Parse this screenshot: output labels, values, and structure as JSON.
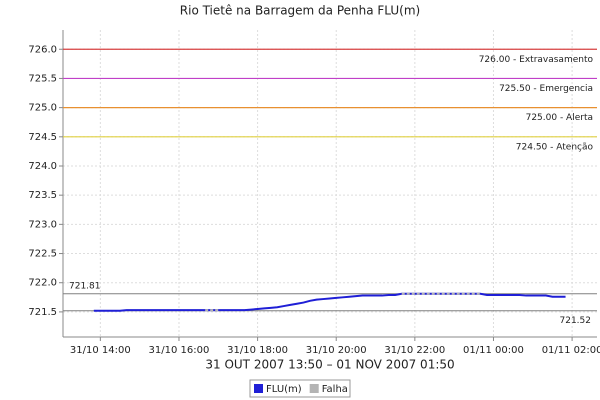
{
  "chart_data": {
    "type": "line",
    "title": "Rio Tietê na Barragem da Penha FLU(m)",
    "subtitle": "31 OUT 2007 13:50 – 01 NOV 2007 01:50",
    "x": [
      "2007-10-31 13:50",
      "2007-10-31 14:00",
      "2007-10-31 14:10",
      "2007-10-31 14:20",
      "2007-10-31 14:30",
      "2007-10-31 14:40",
      "2007-10-31 14:50",
      "2007-10-31 15:00",
      "2007-10-31 15:10",
      "2007-10-31 15:20",
      "2007-10-31 15:30",
      "2007-10-31 15:40",
      "2007-10-31 15:50",
      "2007-10-31 16:00",
      "2007-10-31 16:10",
      "2007-10-31 16:20",
      "2007-10-31 16:30",
      "2007-10-31 16:40",
      "2007-10-31 16:50",
      "2007-10-31 17:00",
      "2007-10-31 17:10",
      "2007-10-31 17:20",
      "2007-10-31 17:30",
      "2007-10-31 17:40",
      "2007-10-31 17:50",
      "2007-10-31 18:00",
      "2007-10-31 18:10",
      "2007-10-31 18:20",
      "2007-10-31 18:30",
      "2007-10-31 18:40",
      "2007-10-31 18:50",
      "2007-10-31 19:00",
      "2007-10-31 19:10",
      "2007-10-31 19:20",
      "2007-10-31 19:30",
      "2007-10-31 19:40",
      "2007-10-31 19:50",
      "2007-10-31 20:00",
      "2007-10-31 20:10",
      "2007-10-31 20:20",
      "2007-10-31 20:30",
      "2007-10-31 20:40",
      "2007-10-31 20:50",
      "2007-10-31 21:00",
      "2007-10-31 21:10",
      "2007-10-31 21:20",
      "2007-10-31 21:30",
      "2007-10-31 21:40",
      "2007-10-31 21:50",
      "2007-10-31 22:00",
      "2007-10-31 22:10",
      "2007-10-31 22:20",
      "2007-10-31 22:30",
      "2007-10-31 22:40",
      "2007-10-31 22:50",
      "2007-10-31 23:00",
      "2007-10-31 23:10",
      "2007-10-31 23:20",
      "2007-10-31 23:30",
      "2007-10-31 23:40",
      "2007-10-31 23:50",
      "2007-11-01 00:00",
      "2007-11-01 00:10",
      "2007-11-01 00:20",
      "2007-11-01 00:30",
      "2007-11-01 00:40",
      "2007-11-01 00:50",
      "2007-11-01 01:00",
      "2007-11-01 01:10",
      "2007-11-01 01:20",
      "2007-11-01 01:30",
      "2007-11-01 01:40",
      "2007-11-01 01:50"
    ],
    "series": [
      {
        "name": "FLU(m)",
        "color": "#1f1fd6",
        "values": [
          721.52,
          721.52,
          721.52,
          721.52,
          721.52,
          721.53,
          721.53,
          721.53,
          721.53,
          721.53,
          721.53,
          721.53,
          721.53,
          721.53,
          721.53,
          721.53,
          721.53,
          721.53,
          721.53,
          721.53,
          721.53,
          721.53,
          721.53,
          721.53,
          721.54,
          721.55,
          721.56,
          721.57,
          721.58,
          721.6,
          721.62,
          721.64,
          721.66,
          721.69,
          721.71,
          721.72,
          721.73,
          721.74,
          721.75,
          721.76,
          721.77,
          721.78,
          721.78,
          721.78,
          721.78,
          721.79,
          721.79,
          721.81,
          721.81,
          721.81,
          721.81,
          721.81,
          721.81,
          721.81,
          721.81,
          721.81,
          721.81,
          721.81,
          721.81,
          721.81,
          721.79,
          721.79,
          721.79,
          721.79,
          721.79,
          721.79,
          721.78,
          721.78,
          721.78,
          721.78,
          721.76,
          721.76,
          721.76
        ]
      },
      {
        "name": "Falha",
        "color": "#b4b4b4",
        "values": [
          null,
          null,
          null,
          null,
          null,
          null,
          null,
          null,
          null,
          null,
          null,
          null,
          null,
          null,
          null,
          null,
          null,
          721.53,
          721.53,
          721.53,
          null,
          null,
          null,
          null,
          null,
          null,
          null,
          null,
          null,
          null,
          null,
          null,
          null,
          null,
          null,
          null,
          null,
          null,
          null,
          null,
          null,
          null,
          null,
          null,
          null,
          null,
          null,
          721.81,
          721.81,
          721.81,
          721.81,
          721.81,
          721.81,
          721.81,
          721.81,
          721.81,
          721.81,
          721.81,
          721.81,
          721.81,
          null,
          null,
          null,
          null,
          null,
          null,
          null,
          null,
          null,
          null,
          null,
          null,
          null
        ]
      }
    ],
    "xlim": [
      "2007-10-31 13:03",
      "2007-11-01 02:38"
    ],
    "xticks": [
      {
        "value": "2007-10-31 14:00",
        "label": "31/10 14:00"
      },
      {
        "value": "2007-10-31 16:00",
        "label": "31/10 16:00"
      },
      {
        "value": "2007-10-31 18:00",
        "label": "31/10 18:00"
      },
      {
        "value": "2007-10-31 20:00",
        "label": "31/10 20:00"
      },
      {
        "value": "2007-10-31 22:00",
        "label": "31/10 22:00"
      },
      {
        "value": "2007-11-01 00:00",
        "label": "01/11 00:00"
      },
      {
        "value": "2007-11-01 02:00",
        "label": "01/11 02:00"
      }
    ],
    "ylim": [
      721.07,
      726.33
    ],
    "yticks": [
      721.5,
      {
        "value": 722,
        "label": "722.0"
      },
      722.5,
      {
        "value": 723,
        "label": "723.0"
      },
      723.5,
      {
        "value": 724,
        "label": "724.0"
      },
      724.5,
      {
        "value": 725,
        "label": "725.0"
      },
      725.5,
      {
        "value": 726,
        "label": "726.0"
      }
    ],
    "grid": true,
    "reference_lines": [
      {
        "value": 726,
        "label": "726.00 - Extravasamento",
        "color": "#d84040"
      },
      {
        "value": 725.5,
        "label": "725.50 - Emergencia",
        "color": "#c040c8"
      },
      {
        "value": 725,
        "label": "725.00 - Alerta",
        "color": "#e89030"
      },
      {
        "value": 724.5,
        "label": "724.50 - Atenção",
        "color": "#e0d040"
      }
    ],
    "max_line": 721.81,
    "min_line": 721.52,
    "extreme_color": "#808080"
  }
}
